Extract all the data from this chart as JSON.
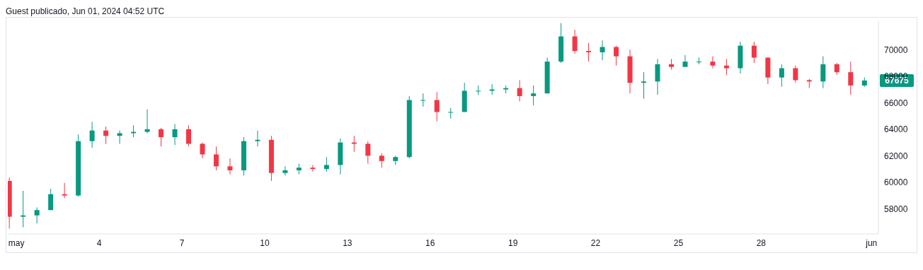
{
  "chart_data": {
    "type": "candlestick",
    "title": "Guest publicado, Jun 01, 2024 04:52 UTC",
    "x": [
      "2024-04-30T18:00",
      "2024-05-01T06:00",
      "2024-05-01T18:00",
      "2024-05-02T06:00",
      "2024-05-02T18:00",
      "2024-05-03T06:00",
      "2024-05-03T18:00",
      "2024-05-04T06:00",
      "2024-05-04T18:00",
      "2024-05-05T06:00",
      "2024-05-05T18:00",
      "2024-05-06T06:00",
      "2024-05-06T18:00",
      "2024-05-07T06:00",
      "2024-05-07T18:00",
      "2024-05-08T06:00",
      "2024-05-08T18:00",
      "2024-05-09T06:00",
      "2024-05-09T18:00",
      "2024-05-10T06:00",
      "2024-05-10T18:00",
      "2024-05-11T06:00",
      "2024-05-11T18:00",
      "2024-05-12T06:00",
      "2024-05-12T18:00",
      "2024-05-13T06:00",
      "2024-05-13T18:00",
      "2024-05-14T06:00",
      "2024-05-14T18:00",
      "2024-05-15T06:00",
      "2024-05-15T18:00",
      "2024-05-16T06:00",
      "2024-05-16T18:00",
      "2024-05-17T06:00",
      "2024-05-17T18:00",
      "2024-05-18T06:00",
      "2024-05-18T18:00",
      "2024-05-19T06:00",
      "2024-05-19T18:00",
      "2024-05-20T06:00",
      "2024-05-20T18:00",
      "2024-05-21T06:00",
      "2024-05-21T18:00",
      "2024-05-22T06:00",
      "2024-05-22T18:00",
      "2024-05-23T06:00",
      "2024-05-23T18:00",
      "2024-05-24T06:00",
      "2024-05-24T18:00",
      "2024-05-25T06:00",
      "2024-05-25T18:00",
      "2024-05-26T06:00",
      "2024-05-26T18:00",
      "2024-05-27T06:00",
      "2024-05-27T18:00",
      "2024-05-28T06:00",
      "2024-05-28T18:00",
      "2024-05-29T06:00",
      "2024-05-29T18:00",
      "2024-05-30T06:00",
      "2024-05-30T18:00",
      "2024-05-31T06:00",
      "2024-05-31T18:00"
    ],
    "ohlc": [
      [
        60100,
        60350,
        56500,
        57400
      ],
      [
        57400,
        59350,
        56600,
        57500
      ],
      [
        57500,
        58100,
        56900,
        57900
      ],
      [
        57900,
        59500,
        57900,
        59100
      ],
      [
        59100,
        59950,
        58800,
        59000
      ],
      [
        59000,
        63600,
        58900,
        63100
      ],
      [
        63100,
        64550,
        62600,
        63900
      ],
      [
        63900,
        64200,
        62900,
        63500
      ],
      [
        63500,
        63900,
        62900,
        63700
      ],
      [
        63700,
        64300,
        63400,
        63800
      ],
      [
        63800,
        65500,
        63700,
        64000
      ],
      [
        64000,
        64100,
        62700,
        63400
      ],
      [
        63400,
        64400,
        62800,
        64000
      ],
      [
        64000,
        64300,
        62700,
        62900
      ],
      [
        62900,
        63000,
        61800,
        62100
      ],
      [
        62100,
        62700,
        60900,
        61200
      ],
      [
        61200,
        61800,
        60600,
        60900
      ],
      [
        60900,
        63400,
        60500,
        63100
      ],
      [
        63100,
        63900,
        62700,
        63200
      ],
      [
        63200,
        63500,
        60100,
        60700
      ],
      [
        60700,
        61200,
        60500,
        60900
      ],
      [
        60900,
        61400,
        60600,
        61100
      ],
      [
        61100,
        61300,
        60800,
        61000
      ],
      [
        61000,
        61900,
        60800,
        61300
      ],
      [
        61300,
        63300,
        60600,
        63000
      ],
      [
        63000,
        63500,
        62300,
        62900
      ],
      [
        62900,
        63100,
        61400,
        62000
      ],
      [
        62000,
        62200,
        61100,
        61600
      ],
      [
        61600,
        62000,
        61300,
        61900
      ],
      [
        61900,
        66500,
        61800,
        66200
      ],
      [
        66200,
        66700,
        65700,
        66200
      ],
      [
        66200,
        66800,
        64600,
        65300
      ],
      [
        65300,
        65600,
        64800,
        65300
      ],
      [
        65300,
        67500,
        65300,
        66900
      ],
      [
        66900,
        67300,
        66600,
        66900
      ],
      [
        66900,
        67400,
        66600,
        67000
      ],
      [
        67000,
        67300,
        66700,
        67100
      ],
      [
        67100,
        67700,
        66100,
        66500
      ],
      [
        66500,
        67300,
        65800,
        66700
      ],
      [
        66700,
        69400,
        66700,
        69100
      ],
      [
        69100,
        72000,
        69000,
        71000
      ],
      [
        71000,
        71500,
        69700,
        69900
      ],
      [
        69900,
        70500,
        69100,
        69800
      ],
      [
        69800,
        70700,
        69200,
        70200
      ],
      [
        70200,
        70300,
        68800,
        69500
      ],
      [
        69500,
        70000,
        66700,
        67500
      ],
      [
        67500,
        68300,
        66300,
        67600
      ],
      [
        67600,
        69300,
        66600,
        68900
      ],
      [
        68900,
        69300,
        68500,
        68700
      ],
      [
        68700,
        69600,
        68700,
        69100
      ],
      [
        69100,
        69400,
        68900,
        69100
      ],
      [
        69100,
        69500,
        68600,
        68800
      ],
      [
        68800,
        69300,
        68100,
        68600
      ],
      [
        68600,
        70600,
        68200,
        70300
      ],
      [
        70300,
        70600,
        69000,
        69400
      ],
      [
        69400,
        69400,
        67400,
        67900
      ],
      [
        67900,
        68900,
        67200,
        68600
      ],
      [
        68600,
        68800,
        67500,
        67700
      ],
      [
        67700,
        67800,
        67100,
        67600
      ],
      [
        67600,
        69500,
        67100,
        68900
      ],
      [
        68900,
        69000,
        68100,
        68300
      ],
      [
        68300,
        69100,
        66600,
        67300
      ],
      [
        67300,
        67900,
        67200,
        67675
      ]
    ],
    "xlim": [
      "2024-04-30T16:30",
      "2024-06-01T06:00"
    ],
    "xticks": [
      {
        "value": "2024-05-01",
        "label": "may"
      },
      {
        "value": "2024-05-04",
        "label": "4"
      },
      {
        "value": "2024-05-07",
        "label": "7"
      },
      {
        "value": "2024-05-10",
        "label": "10"
      },
      {
        "value": "2024-05-13",
        "label": "13"
      },
      {
        "value": "2024-05-16",
        "label": "16"
      },
      {
        "value": "2024-05-19",
        "label": "19"
      },
      {
        "value": "2024-05-22",
        "label": "22"
      },
      {
        "value": "2024-05-25",
        "label": "25"
      },
      {
        "value": "2024-05-28",
        "label": "28"
      },
      {
        "value": "2024-06-01",
        "label": "jun"
      }
    ],
    "ylim": [
      56100,
      72200
    ],
    "yticks": [
      58000,
      60000,
      62000,
      64000,
      66000,
      68000,
      70000
    ],
    "annotations": [
      {
        "text": "67675",
        "x": "2024-05-31T18:00",
        "y": 67675
      }
    ]
  }
}
